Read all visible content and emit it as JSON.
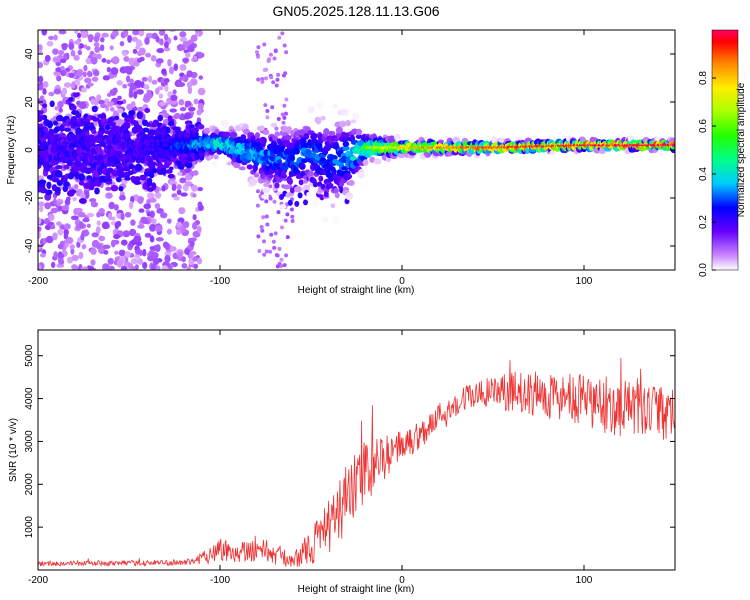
{
  "title": "GN05.2025.128.11.13.G06",
  "chart_data": [
    {
      "type": "heatmap",
      "xlabel": "Height of straight line (km)",
      "ylabel": "Frequency (Hz)",
      "xlim": [
        -200,
        150
      ],
      "ylim": [
        -50,
        50
      ],
      "xticks": [
        -200,
        -100,
        0,
        100
      ],
      "yticks": [
        -40,
        -20,
        0,
        20,
        40
      ],
      "colorbar": {
        "label": "Normalized spectral amplitude",
        "range": [
          0,
          1
        ],
        "ticks": [
          "0.0",
          "0.2",
          "0.4",
          "0.6",
          "0.8"
        ]
      },
      "ridge": {
        "x": [
          -200,
          -150,
          -120,
          -100,
          -80,
          -60,
          -50,
          -40,
          -30,
          -20,
          0,
          50,
          100,
          150
        ],
        "freq": [
          0,
          0,
          2,
          3,
          -2,
          -5,
          0,
          -6,
          -3,
          1,
          1,
          1,
          2,
          2
        ],
        "level": [
          0.15,
          0.15,
          0.3,
          0.42,
          0.35,
          0.3,
          0.32,
          0.28,
          0.35,
          0.55,
          0.75,
          0.88,
          0.92,
          0.95
        ]
      },
      "ridge_peak_width_hz": [
        8,
        8,
        4,
        3,
        6,
        8,
        7,
        10,
        8,
        3,
        1.5,
        1.2,
        1,
        1
      ]
    },
    {
      "type": "line",
      "xlabel": "Height of straight line (km)",
      "ylabel": "SNR (10 * v/v)",
      "xlim": [
        -200,
        150
      ],
      "ylim": [
        0,
        5600
      ],
      "xticks": [
        -200,
        -100,
        0,
        100
      ],
      "yticks": [
        1000,
        2000,
        3000,
        4000,
        5000
      ],
      "series": [
        {
          "color": "#ee3333",
          "envelope_x": [
            -200,
            -150,
            -115,
            -110,
            -100,
            -90,
            -80,
            -70,
            -60,
            -50,
            -40,
            -30,
            -20,
            -10,
            0,
            10,
            20,
            30,
            40,
            60,
            80,
            100,
            120,
            150
          ],
          "envelope_mean": [
            150,
            160,
            180,
            300,
            480,
            420,
            520,
            380,
            200,
            550,
            1000,
            1700,
            2300,
            2600,
            2900,
            3150,
            3600,
            3900,
            4100,
            4150,
            4100,
            3900,
            3800,
            3600
          ],
          "envelope_jitter": [
            60,
            60,
            80,
            160,
            300,
            250,
            320,
            260,
            160,
            450,
            650,
            800,
            750,
            500,
            400,
            350,
            300,
            300,
            350,
            450,
            550,
            650,
            700,
            600
          ]
        }
      ]
    }
  ]
}
